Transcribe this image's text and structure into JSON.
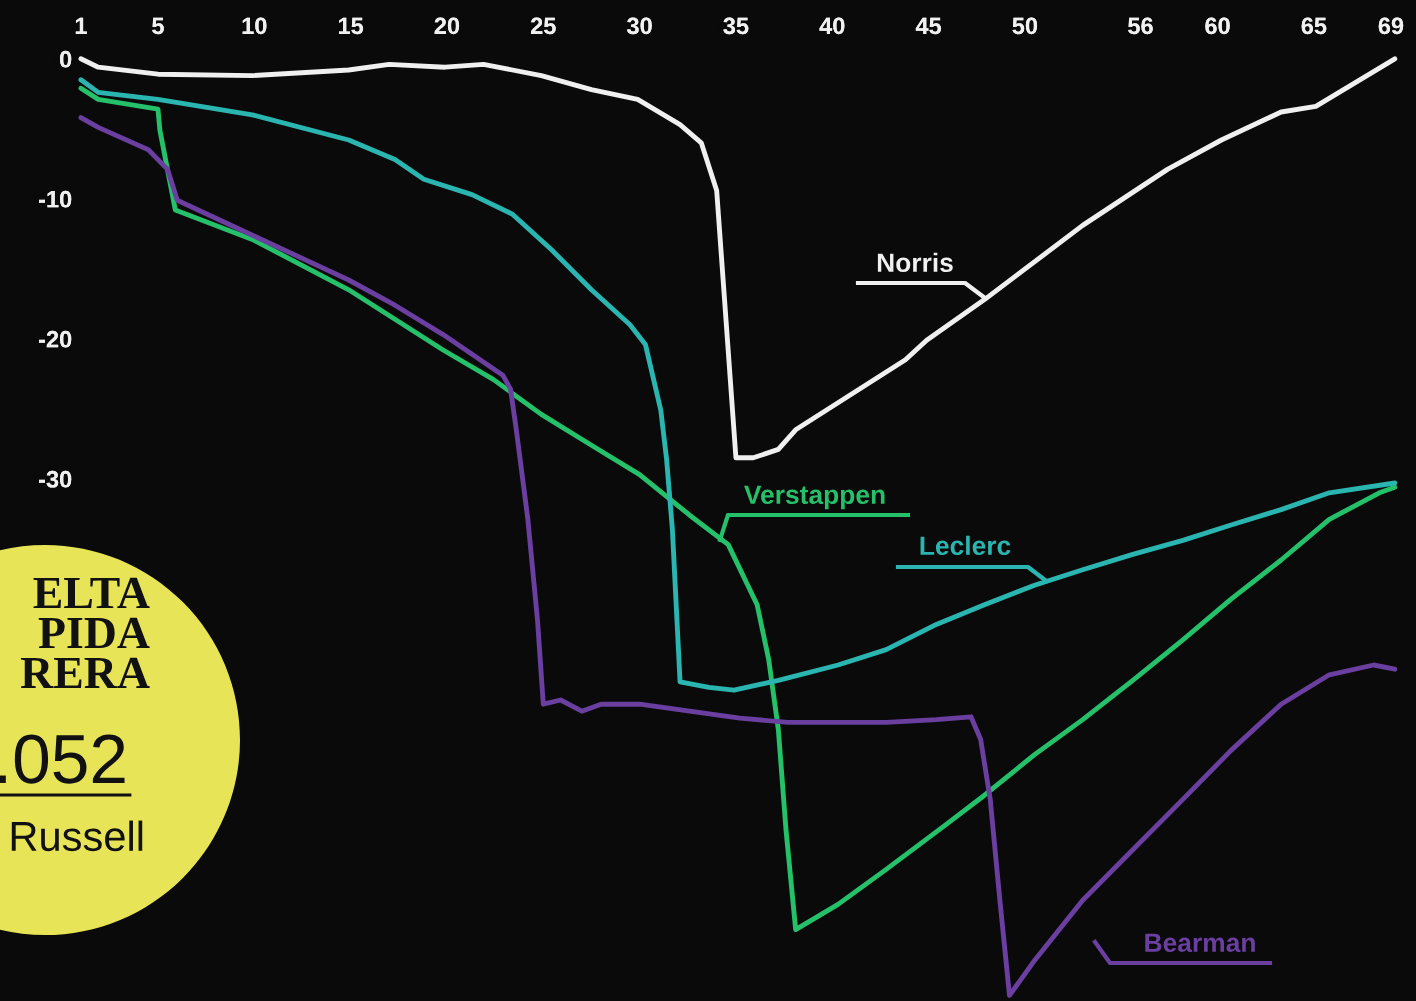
{
  "chart_data": {
    "type": "line",
    "xlim": [
      -3.2,
      70.3
    ],
    "ylim": [
      -67.3,
      4.2
    ],
    "xticks": [
      1,
      5,
      10,
      15,
      20,
      25,
      30,
      35,
      40,
      45,
      50,
      56,
      60,
      65,
      69
    ],
    "yticks": [
      0,
      -10,
      -20,
      -30
    ],
    "grid": false,
    "legend": false,
    "marker": "none",
    "line_style": "solid",
    "annotations": [
      "ELTA\nPIDA\nRERA",
      ".052",
      "Russell"
    ],
    "series": [
      {
        "name": "Norris",
        "color": "#f0f0f0",
        "x": [
          1,
          1.9,
          5,
          9.9,
          14.9,
          17,
          19.9,
          21.9,
          24.9,
          27.5,
          29.9,
          32.1,
          33.2,
          34.0,
          35.0,
          35.9,
          37.2,
          38.1,
          43.8,
          44.9,
          47.9,
          53.0,
          57.4,
          60.2,
          63.3,
          65.1,
          69.2
        ],
        "values": [
          0,
          -0.6,
          -1.1,
          -1.2,
          -0.8,
          -0.4,
          -0.6,
          -0.4,
          -1.2,
          -2.2,
          -2.9,
          -4.7,
          -6.0,
          -9.4,
          -28.5,
          -28.5,
          -27.9,
          -26.5,
          -21.5,
          -20.1,
          -17.2,
          -11.9,
          -7.9,
          -5.8,
          -3.8,
          -3.4,
          0
        ]
      },
      {
        "name": "Verstappen",
        "color": "#25c06a",
        "x": [
          1,
          1.9,
          5.0,
          5.1,
          5.9,
          9.9,
          14.9,
          17.3,
          19.8,
          22.4,
          24.9,
          27.5,
          30.0,
          32.6,
          34.6,
          36.1,
          36.7,
          37.2,
          37.6,
          38.1,
          40.3,
          42.8,
          45.9,
          47.9,
          50.5,
          53.0,
          55.6,
          58.2,
          60.7,
          63.3,
          65.8,
          68.4,
          69.2
        ],
        "values": [
          -2.1,
          -2.9,
          -3.6,
          -5.1,
          -10.8,
          -12.9,
          -16.5,
          -18.6,
          -20.8,
          -22.9,
          -25.4,
          -27.6,
          -29.7,
          -32.6,
          -34.7,
          -39.0,
          -42.9,
          -47.9,
          -55.1,
          -62.2,
          -60.4,
          -57.9,
          -54.7,
          -52.6,
          -49.7,
          -47.2,
          -44.4,
          -41.5,
          -38.6,
          -35.8,
          -32.9,
          -31.0,
          -30.6
        ]
      },
      {
        "name": "Leclerc",
        "color": "#2bb5b0",
        "x": [
          1,
          1.9,
          5.0,
          9.9,
          14.9,
          17.3,
          18.8,
          21.3,
          23.4,
          25.4,
          27.5,
          29.5,
          30.3,
          31.1,
          31.4,
          31.7,
          32.1,
          33.6,
          34.9,
          37.2,
          40.3,
          42.8,
          45.4,
          47.9,
          50.5,
          53.0,
          55.6,
          58.2,
          60.7,
          63.3,
          65.8,
          69.2
        ],
        "values": [
          -1.5,
          -2.4,
          -2.9,
          -4.0,
          -5.8,
          -7.2,
          -8.6,
          -9.7,
          -11.1,
          -13.6,
          -16.5,
          -19.0,
          -20.4,
          -25.1,
          -28.6,
          -33.6,
          -44.5,
          -44.9,
          -45.1,
          -44.4,
          -43.3,
          -42.2,
          -40.4,
          -39.0,
          -37.6,
          -36.5,
          -35.4,
          -34.4,
          -33.3,
          -32.2,
          -31.0,
          -30.3
        ]
      },
      {
        "name": "Bearman",
        "color": "#6a3fa0",
        "x": [
          1,
          1.9,
          4.5,
          5.5,
          6.0,
          9.9,
          14.9,
          17.3,
          19.8,
          22.9,
          23.3,
          23.6,
          24.2,
          24.7,
          25.0,
          25.9,
          27.0,
          28.0,
          30.0,
          32.6,
          35.2,
          37.7,
          40.3,
          42.8,
          45.4,
          47.2,
          47.7,
          48.2,
          48.7,
          49.2,
          50.5,
          53.0,
          55.6,
          58.2,
          60.7,
          63.3,
          65.8,
          68.1,
          69.2
        ],
        "values": [
          -4.2,
          -4.9,
          -6.5,
          -7.9,
          -10.1,
          -12.6,
          -15.8,
          -17.6,
          -19.7,
          -22.6,
          -23.6,
          -26.5,
          -32.9,
          -40.1,
          -46.1,
          -45.8,
          -46.6,
          -46.1,
          -46.1,
          -46.6,
          -47.1,
          -47.4,
          -47.4,
          -47.4,
          -47.2,
          -47.0,
          -48.6,
          -52.9,
          -60.1,
          -66.9,
          -64.4,
          -60.1,
          -56.5,
          -52.9,
          -49.4,
          -46.1,
          -44.0,
          -43.3,
          -43.6
        ]
      }
    ]
  }
}
